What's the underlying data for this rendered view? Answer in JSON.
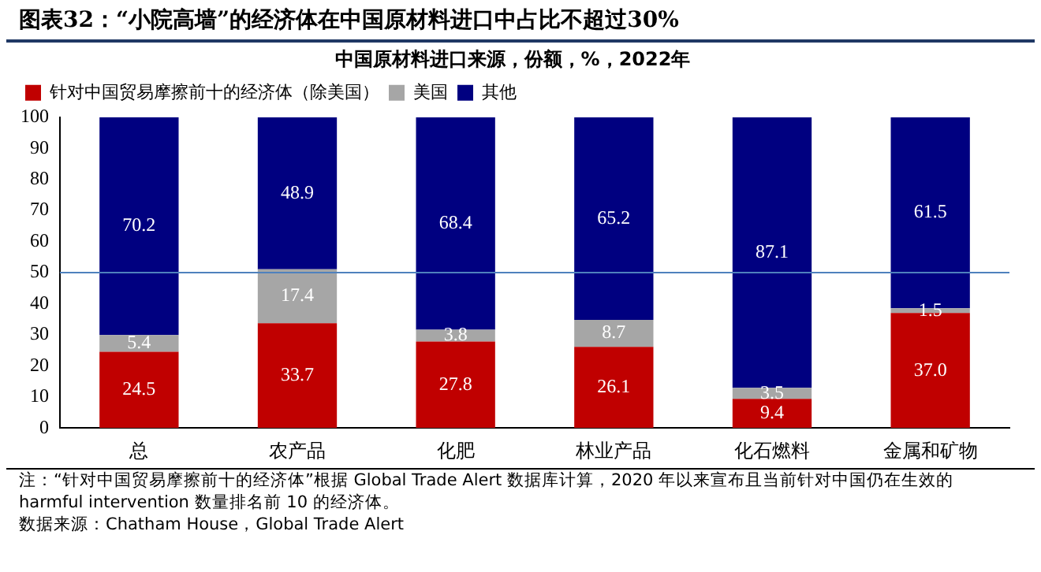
{
  "chart_data": {
    "type": "bar",
    "title": "图表32：“小院高墙”的经济体在中国原材料进口中占比不超过30%",
    "subtitle": "中国原材料进口来源，份额，%，2022年",
    "categories": [
      "总",
      "农产品",
      "化肥",
      "林业产品",
      "化石燃料",
      "金属和矿物"
    ],
    "stacked": true,
    "legend": "top",
    "grid": false,
    "ylim": [
      0,
      100
    ],
    "yticks": [
      0,
      10,
      20,
      30,
      40,
      50,
      60,
      70,
      80,
      90,
      100
    ],
    "ref_lines": [
      {
        "axis": "y",
        "value": 50,
        "color": "#4f81bd"
      }
    ],
    "series": [
      {
        "name": "针对中国贸易摩擦前十的经济体（除美国）",
        "color": "#c00000",
        "values": [
          24.5,
          33.7,
          27.8,
          26.1,
          9.4,
          37.0
        ],
        "value_labels": [
          "24.5",
          "33.7",
          "27.8",
          "26.1",
          "9.4",
          "37.0"
        ]
      },
      {
        "name": "美国",
        "color": "#a6a6a6",
        "values": [
          5.4,
          17.4,
          3.8,
          8.7,
          3.5,
          1.5
        ],
        "value_labels": [
          "5.4",
          "17.4",
          "3.8",
          "8.7",
          "3.5",
          "1.5"
        ]
      },
      {
        "name": "其他",
        "color": "#000080",
        "values": [
          70.2,
          48.9,
          68.4,
          65.2,
          87.1,
          61.5
        ],
        "value_labels": [
          "70.2",
          "48.9",
          "68.4",
          "65.2",
          "87.1",
          "61.5"
        ]
      }
    ],
    "annotations": [
      "注：“针对中国贸易摩擦前十的经济体”根据 Global Trade Alert 数据库计算，2020 年以来宣布且当前针对中国仍在生效的 harmful intervention 数量排名前 10 的经济体。",
      "数据来源：Chatham House，Global Trade Alert"
    ]
  }
}
